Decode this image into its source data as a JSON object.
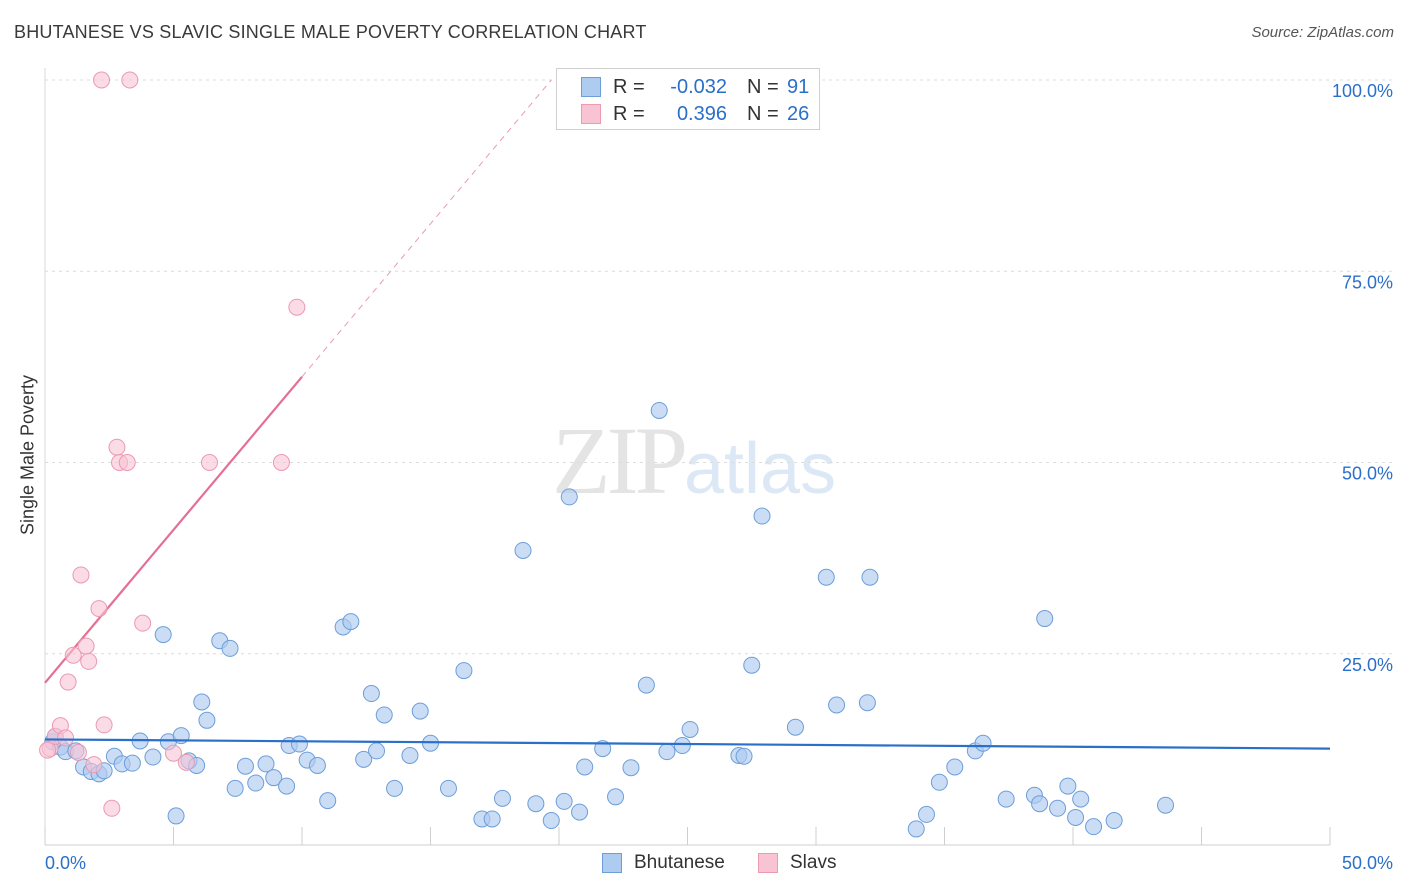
{
  "header": {
    "title": "BHUTANESE VS SLAVIC SINGLE MALE POVERTY CORRELATION CHART",
    "source": "Source: ZipAtlas.com"
  },
  "watermark": {
    "zip": "ZIP",
    "atlas": "atlas"
  },
  "legend_top": {
    "rows": [
      {
        "r_label": "R =",
        "r_value": "-0.032",
        "n_label": "N =",
        "n_value": "91"
      },
      {
        "r_label": "R =",
        "r_value": "0.396",
        "n_label": "N =",
        "n_value": "26"
      }
    ]
  },
  "colors": {
    "bhutanese_fill": "#aecbf0",
    "bhutanese_stroke": "#6d9ed9",
    "bhutanese_line": "#2a6fc9",
    "slavs_fill": "#f8c3d3",
    "slavs_stroke": "#ea9ab2",
    "slavs_line": "#e56f94",
    "tick_text": "#2a6fc9",
    "grid": "#dcdcdc"
  },
  "chart_data": {
    "type": "scatter",
    "title": "BHUTANESE VS SLAVIC SINGLE MALE POVERTY CORRELATION CHART",
    "xlabel": "",
    "ylabel": "Single Male Poverty",
    "xlim": [
      0,
      50
    ],
    "ylim": [
      0,
      100
    ],
    "x_tick_labels": [
      "0.0%",
      "50.0%"
    ],
    "y_tick_labels": [
      "25.0%",
      "50.0%",
      "75.0%",
      "100.0%"
    ],
    "y_ticks": [
      25,
      50,
      75,
      100
    ],
    "grid": true,
    "legend_position": "bottom",
    "series": [
      {
        "name": "Bhutanese",
        "r": -0.032,
        "n": 91,
        "trend": {
          "x": [
            0,
            50
          ],
          "y": [
            13.8,
            12.6
          ]
        },
        "points": [
          [
            0.3,
            13.5
          ],
          [
            0.4,
            14.2
          ],
          [
            0.6,
            12.8
          ],
          [
            0.8,
            12.2
          ],
          [
            1.2,
            12.3
          ],
          [
            1.5,
            10.2
          ],
          [
            1.8,
            9.6
          ],
          [
            2.1,
            9.3
          ],
          [
            2.3,
            9.7
          ],
          [
            2.7,
            11.6
          ],
          [
            3.0,
            10.6
          ],
          [
            3.4,
            10.7
          ],
          [
            3.7,
            13.6
          ],
          [
            4.2,
            11.5
          ],
          [
            4.6,
            27.5
          ],
          [
            4.8,
            13.5
          ],
          [
            5.1,
            3.8
          ],
          [
            5.3,
            14.3
          ],
          [
            5.6,
            11.0
          ],
          [
            5.9,
            10.4
          ],
          [
            6.1,
            18.7
          ],
          [
            6.3,
            16.3
          ],
          [
            6.8,
            26.7
          ],
          [
            7.2,
            25.7
          ],
          [
            7.4,
            7.4
          ],
          [
            7.8,
            10.3
          ],
          [
            8.2,
            8.1
          ],
          [
            8.6,
            10.6
          ],
          [
            8.9,
            8.8
          ],
          [
            9.4,
            7.7
          ],
          [
            9.5,
            13.0
          ],
          [
            9.9,
            13.2
          ],
          [
            10.2,
            11.1
          ],
          [
            10.6,
            10.4
          ],
          [
            11.0,
            5.8
          ],
          [
            11.6,
            28.5
          ],
          [
            11.9,
            29.2
          ],
          [
            12.4,
            11.2
          ],
          [
            12.7,
            19.8
          ],
          [
            12.9,
            12.3
          ],
          [
            13.2,
            17.0
          ],
          [
            13.6,
            7.4
          ],
          [
            14.2,
            11.7
          ],
          [
            14.6,
            17.5
          ],
          [
            15.0,
            13.3
          ],
          [
            15.7,
            7.4
          ],
          [
            16.3,
            22.8
          ],
          [
            17.0,
            3.4
          ],
          [
            17.4,
            3.4
          ],
          [
            17.8,
            6.1
          ],
          [
            18.6,
            38.5
          ],
          [
            19.1,
            5.4
          ],
          [
            19.7,
            3.2
          ],
          [
            20.2,
            5.7
          ],
          [
            20.4,
            45.5
          ],
          [
            20.8,
            4.3
          ],
          [
            21.0,
            10.2
          ],
          [
            21.7,
            12.6
          ],
          [
            22.2,
            6.3
          ],
          [
            22.8,
            10.1
          ],
          [
            23.4,
            20.9
          ],
          [
            23.9,
            56.8
          ],
          [
            24.2,
            12.2
          ],
          [
            24.8,
            13.0
          ],
          [
            25.1,
            15.1
          ],
          [
            27.0,
            11.7
          ],
          [
            27.2,
            11.6
          ],
          [
            27.5,
            23.5
          ],
          [
            27.9,
            43.0
          ],
          [
            29.2,
            15.4
          ],
          [
            30.4,
            35.0
          ],
          [
            30.8,
            18.3
          ],
          [
            32.1,
            35.0
          ],
          [
            32.0,
            18.6
          ],
          [
            33.9,
            2.1
          ],
          [
            34.3,
            4.0
          ],
          [
            34.8,
            8.2
          ],
          [
            35.4,
            10.2
          ],
          [
            36.2,
            12.3
          ],
          [
            36.5,
            13.3
          ],
          [
            37.4,
            6.0
          ],
          [
            38.5,
            6.5
          ],
          [
            38.7,
            5.4
          ],
          [
            38.9,
            29.6
          ],
          [
            39.4,
            4.8
          ],
          [
            39.8,
            7.7
          ],
          [
            40.1,
            3.6
          ],
          [
            40.3,
            6.0
          ],
          [
            40.8,
            2.4
          ],
          [
            41.6,
            3.2
          ],
          [
            43.6,
            5.2
          ]
        ]
      },
      {
        "name": "Slavs",
        "r": 0.396,
        "n": 26,
        "trend": {
          "x": [
            0,
            10
          ],
          "y": [
            21.2,
            61.2
          ]
        },
        "points": [
          [
            0.2,
            12.6
          ],
          [
            0.4,
            14.2
          ],
          [
            0.6,
            15.6
          ],
          [
            0.8,
            14.0
          ],
          [
            0.9,
            21.3
          ],
          [
            1.1,
            24.8
          ],
          [
            1.3,
            12.1
          ],
          [
            1.4,
            35.3
          ],
          [
            1.6,
            26.0
          ],
          [
            1.7,
            24.0
          ],
          [
            1.9,
            10.5
          ],
          [
            2.1,
            30.9
          ],
          [
            2.3,
            15.7
          ],
          [
            2.6,
            4.8
          ],
          [
            2.8,
            52.0
          ],
          [
            2.9,
            50.0
          ],
          [
            3.2,
            50.0
          ],
          [
            3.8,
            29.0
          ],
          [
            5.0,
            12.0
          ],
          [
            5.5,
            10.8
          ],
          [
            6.4,
            50.0
          ],
          [
            9.2,
            50.0
          ],
          [
            9.8,
            70.3
          ],
          [
            2.2,
            100.0
          ],
          [
            3.3,
            100.0
          ],
          [
            0.1,
            12.4
          ]
        ]
      }
    ]
  },
  "legend_bottom": {
    "items": [
      "Bhutanese",
      "Slavs"
    ]
  }
}
